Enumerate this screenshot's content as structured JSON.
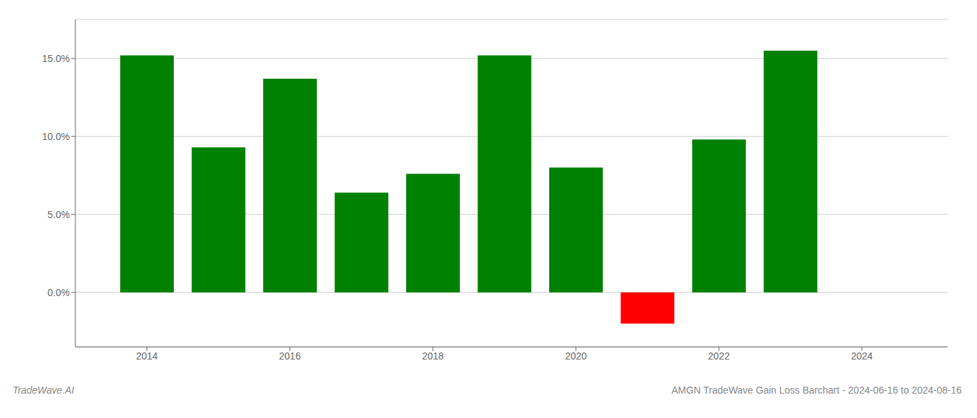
{
  "chart_data": {
    "type": "bar",
    "title": "AMGN TradeWave Gain Loss Barchart - 2024-06-16 to 2024-08-16",
    "annotations": [
      "TradeWave.AI"
    ],
    "x": [
      2014,
      2015,
      2016,
      2017,
      2018,
      2019,
      2020,
      2021,
      2022,
      2023
    ],
    "values": [
      0.152,
      0.093,
      0.137,
      0.064,
      0.076,
      0.152,
      0.08,
      -0.02,
      0.098,
      0.155
    ],
    "colors": [
      "#008000",
      "#008000",
      "#008000",
      "#008000",
      "#008000",
      "#008000",
      "#008000",
      "#ff0000",
      "#008000",
      "#008000"
    ],
    "xlim": [
      2013.0,
      2025.2
    ],
    "xticks": [
      2014,
      2016,
      2018,
      2020,
      2022,
      2024
    ],
    "ylim": [
      -0.035,
      0.175
    ],
    "yticks": [
      {
        "value": 0.0,
        "label": "0.0%"
      },
      {
        "value": 0.05,
        "label": "5.0%"
      },
      {
        "value": 0.1,
        "label": "10.0%"
      },
      {
        "value": 0.15,
        "label": "15.0%"
      }
    ],
    "grid": true
  }
}
